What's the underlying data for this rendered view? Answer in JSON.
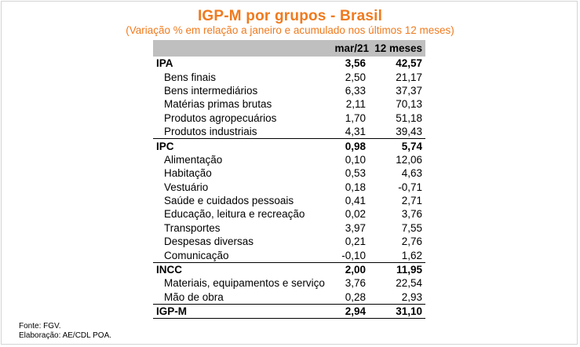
{
  "title": "IGP-M por grupos - Brasil",
  "subtitle": "(Variação % em relação a janeiro e acumulado nos últimos 12 meses)",
  "table": {
    "headers": [
      "",
      "mar/21",
      "12 meses"
    ],
    "rows": [
      {
        "label": "IPA",
        "mar21": "3,56",
        "m12": "42,57"
      },
      {
        "label": "Bens finais",
        "mar21": "2,50",
        "m12": "21,17"
      },
      {
        "label": "Bens intermediários",
        "mar21": "6,33",
        "m12": "37,37"
      },
      {
        "label": "Matérias primas brutas",
        "mar21": "2,11",
        "m12": "70,13"
      },
      {
        "label": "Produtos agropecuários",
        "mar21": "1,70",
        "m12": "51,18"
      },
      {
        "label": "Produtos industriais",
        "mar21": "4,31",
        "m12": "39,43"
      },
      {
        "label": "IPC",
        "mar21": "0,98",
        "m12": "5,74"
      },
      {
        "label": "Alimentação",
        "mar21": "0,10",
        "m12": "12,06"
      },
      {
        "label": "Habitação",
        "mar21": "0,53",
        "m12": "4,63"
      },
      {
        "label": "Vestuário",
        "mar21": "0,18",
        "m12": "-0,71"
      },
      {
        "label": "Saúde e cuidados pessoais",
        "mar21": "0,41",
        "m12": "2,71"
      },
      {
        "label": "Educação, leitura e recreação",
        "mar21": "0,02",
        "m12": "3,76"
      },
      {
        "label": "Transportes",
        "mar21": "3,97",
        "m12": "7,55"
      },
      {
        "label": "Despesas diversas",
        "mar21": "0,21",
        "m12": "2,76"
      },
      {
        "label": "Comunicação",
        "mar21": "-0,10",
        "m12": "1,62"
      },
      {
        "label": "INCC",
        "mar21": "2,00",
        "m12": "11,95"
      },
      {
        "label": "Materiais, equipamentos e serviço",
        "mar21": "3,76",
        "m12": "22,54"
      },
      {
        "label": "Mão de obra",
        "mar21": "0,28",
        "m12": "2,93"
      },
      {
        "label": "IGP-M",
        "mar21": "2,94",
        "m12": "31,10"
      }
    ]
  },
  "notes": {
    "source": "Fonte: FGV.",
    "elaboration": "Elaboração: AE/CDL POA."
  },
  "colors": {
    "title": "#f07a1e",
    "header_bg": "#bfbfbf"
  }
}
